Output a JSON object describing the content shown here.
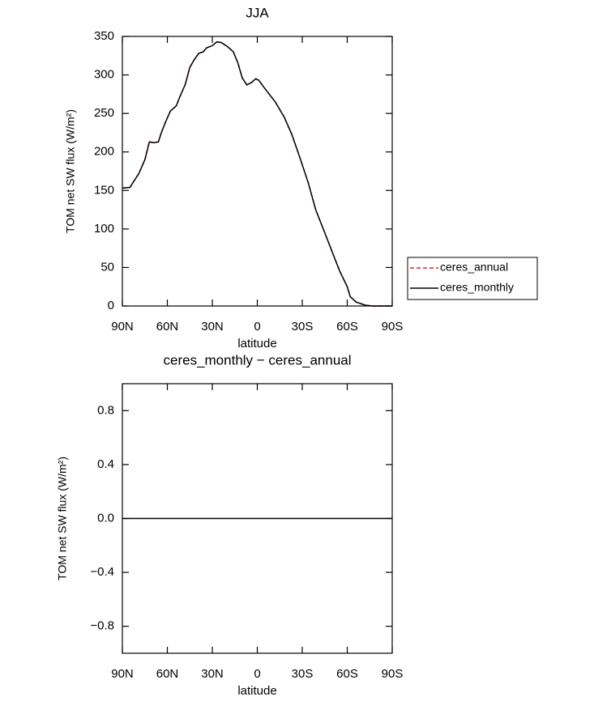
{
  "chart_data": [
    {
      "type": "line",
      "title": "JJA",
      "xlabel": "latitude",
      "ylabel": "TOM net SW flux (W/m²)",
      "x": [
        90,
        85,
        82,
        79,
        75,
        72,
        69,
        66,
        64,
        61,
        58,
        54,
        52,
        48,
        45,
        42,
        39,
        36,
        34,
        30,
        27,
        24,
        20,
        16,
        13,
        10,
        7,
        4,
        1,
        -1,
        -4,
        -8,
        -12,
        -18,
        -23,
        -28,
        -34,
        -39,
        -45,
        -50,
        -55,
        -60,
        -62,
        -66,
        -72,
        -77,
        -90
      ],
      "series": [
        {
          "name": "ceres_annual",
          "color": "#e8202a",
          "linestyle": "dashed",
          "values": [
            153,
            154,
            163,
            172,
            190,
            213,
            212,
            213,
            225,
            240,
            253,
            260,
            270,
            288,
            310,
            320,
            328,
            330,
            335,
            338,
            343,
            342,
            337,
            330,
            316,
            296,
            287,
            290,
            295,
            293,
            285,
            275,
            265,
            245,
            223,
            195,
            160,
            125,
            95,
            70,
            45,
            25,
            12,
            5,
            1,
            0,
            0
          ]
        },
        {
          "name": "ceres_monthly",
          "color": "#000000",
          "linestyle": "solid",
          "values": [
            153,
            154,
            163,
            172,
            190,
            213,
            212,
            213,
            225,
            240,
            253,
            260,
            270,
            288,
            310,
            320,
            328,
            330,
            335,
            338,
            343,
            342,
            337,
            330,
            316,
            296,
            287,
            290,
            295,
            293,
            285,
            275,
            265,
            245,
            223,
            195,
            160,
            125,
            95,
            70,
            45,
            25,
            12,
            5,
            1,
            0,
            0
          ]
        }
      ],
      "xlim": [
        90,
        -90
      ],
      "xticks": [
        {
          "value": 90,
          "label": "90N"
        },
        {
          "value": 60,
          "label": "60N"
        },
        {
          "value": 30,
          "label": "30N"
        },
        0,
        {
          "value": -30,
          "label": "30S"
        },
        {
          "value": -60,
          "label": "60S"
        },
        {
          "value": -90,
          "label": "90S"
        }
      ],
      "ylim": [
        0,
        350
      ],
      "yticks": [
        0,
        50,
        100,
        150,
        200,
        250,
        300,
        350
      ],
      "legend": "right"
    },
    {
      "type": "line",
      "title": "ceres_monthly − ceres_annual",
      "xlabel": "latitude",
      "ylabel": "TOM net SW flux (W/m²)",
      "x": [
        90,
        -90
      ],
      "series": [
        {
          "color": "#000000",
          "linestyle": "solid",
          "values": [
            0,
            0
          ]
        }
      ],
      "xlim": [
        90,
        -90
      ],
      "xticks": [
        {
          "value": 90,
          "label": "90N"
        },
        {
          "value": 60,
          "label": "60N"
        },
        {
          "value": 30,
          "label": "30N"
        },
        0,
        {
          "value": -30,
          "label": "30S"
        },
        {
          "value": -60,
          "label": "60S"
        },
        {
          "value": -90,
          "label": "90S"
        }
      ],
      "ylim": [
        -1,
        1
      ],
      "yticks": [
        {
          "value": -0.8,
          "label": "−0.8"
        },
        {
          "value": -0.4,
          "label": "−0.4"
        },
        {
          "value": 0,
          "label": "0.0"
        },
        0.4,
        0.8
      ]
    }
  ]
}
